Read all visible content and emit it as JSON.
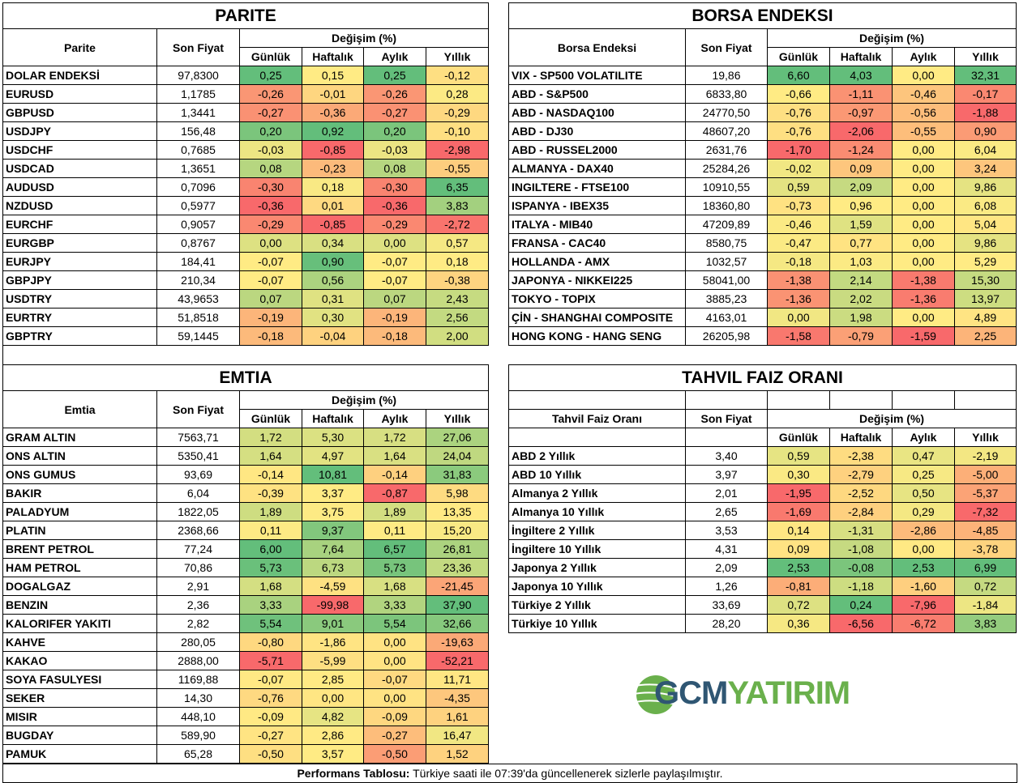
{
  "colors": {
    "low": "#F8696B",
    "mid": "#FFEB84",
    "high": "#63BE7B",
    "logo_blue": "#2F5673",
    "logo_green": "#6AB04C"
  },
  "change_header": "Değişim (%)",
  "periods": [
    "Günlük",
    "Haftalık",
    "Aylık",
    "Yıllık"
  ],
  "price_header": "Son Fiyat",
  "parite": {
    "title": "PARITE",
    "name_header": "Parite",
    "rows": [
      [
        "DOLAR ENDEKSİ",
        "97,8300",
        "0,25",
        "0,15",
        "0,25",
        "-0,12"
      ],
      [
        "EURUSD",
        "1,1785",
        "-0,26",
        "-0,01",
        "-0,26",
        "0,28"
      ],
      [
        "GBPUSD",
        "1,3441",
        "-0,27",
        "-0,36",
        "-0,27",
        "-0,29"
      ],
      [
        "USDJPY",
        "156,48",
        "0,20",
        "0,92",
        "0,20",
        "-0,10"
      ],
      [
        "USDCHF",
        "0,7685",
        "-0,03",
        "-0,85",
        "-0,03",
        "-2,98"
      ],
      [
        "USDCAD",
        "1,3651",
        "0,08",
        "-0,23",
        "0,08",
        "-0,55"
      ],
      [
        "AUDUSD",
        "0,7096",
        "-0,30",
        "0,18",
        "-0,30",
        "6,35"
      ],
      [
        "NZDUSD",
        "0,5977",
        "-0,36",
        "0,01",
        "-0,36",
        "3,83"
      ],
      [
        "EURCHF",
        "0,9057",
        "-0,29",
        "-0,85",
        "-0,29",
        "-2,72"
      ],
      [
        "EURGBP",
        "0,8767",
        "0,00",
        "0,34",
        "0,00",
        "0,57"
      ],
      [
        "EURJPY",
        "184,41",
        "-0,07",
        "0,90",
        "-0,07",
        "0,18"
      ],
      [
        "GBPJPY",
        "210,34",
        "-0,07",
        "0,56",
        "-0,07",
        "-0,38"
      ],
      [
        "USDTRY",
        "43,9653",
        "0,07",
        "0,31",
        "0,07",
        "2,43"
      ],
      [
        "EURTRY",
        "51,8518",
        "-0,19",
        "0,30",
        "-0,19",
        "2,56"
      ],
      [
        "GBPTRY",
        "59,1445",
        "-0,18",
        "-0,04",
        "-0,18",
        "2,00"
      ]
    ]
  },
  "borsa": {
    "title": "BORSA ENDEKSI",
    "name_header": "Borsa Endeksi",
    "rows": [
      [
        "VIX  - SP500 VOLATILITE",
        "19,86",
        "6,60",
        "4,03",
        "0,00",
        "32,31"
      ],
      [
        "ABD - S&P500",
        "6833,80",
        "-0,66",
        "-1,11",
        "-0,46",
        "-0,17"
      ],
      [
        "ABD - NASDAQ100",
        "24770,50",
        "-0,76",
        "-0,97",
        "-0,56",
        "-1,88"
      ],
      [
        "ABD - DJ30",
        "48607,20",
        "-0,76",
        "-2,06",
        "-0,55",
        "0,90"
      ],
      [
        "ABD - RUSSEL2000",
        "2631,76",
        "-1,70",
        "-1,24",
        "0,00",
        "6,04"
      ],
      [
        "ALMANYA - DAX40",
        "25284,26",
        "-0,02",
        "0,09",
        "0,00",
        "3,24"
      ],
      [
        "INGILTERE - FTSE100",
        "10910,55",
        "0,59",
        "2,09",
        "0,00",
        "9,86"
      ],
      [
        "ISPANYA - IBEX35",
        "18360,80",
        "-0,73",
        "0,96",
        "0,00",
        "6,08"
      ],
      [
        "ITALYA - MIB40",
        "47209,89",
        "-0,46",
        "1,59",
        "0,00",
        "5,04"
      ],
      [
        "FRANSA - CAC40",
        "8580,75",
        "-0,47",
        "0,77",
        "0,00",
        "9,86"
      ],
      [
        "HOLLANDA - AMX",
        "1032,57",
        "-0,18",
        "1,03",
        "0,00",
        "5,29"
      ],
      [
        "JAPONYA - NIKKEI225",
        "58041,00",
        "-1,38",
        "2,14",
        "-1,38",
        "15,30"
      ],
      [
        "TOKYO - TOPIX",
        "3885,23",
        "-1,36",
        "2,02",
        "-1,36",
        "13,97"
      ],
      [
        "ÇİN - SHANGHAI COMPOSITE",
        "4163,01",
        "0,00",
        "1,98",
        "0,00",
        "4,89"
      ],
      [
        "HONG KONG - HANG SENG",
        "26205,98",
        "-1,58",
        "-0,79",
        "-1,59",
        "2,25"
      ]
    ]
  },
  "emtia": {
    "title": "EMTIA",
    "name_header": "Emtia",
    "rows": [
      [
        "GRAM ALTIN",
        "7563,71",
        "1,72",
        "5,30",
        "1,72",
        "27,06"
      ],
      [
        "ONS ALTIN",
        "5350,41",
        "1,64",
        "4,97",
        "1,64",
        "24,04"
      ],
      [
        "ONS GUMUS",
        "93,69",
        "-0,14",
        "10,81",
        "-0,14",
        "31,83"
      ],
      [
        "BAKIR",
        "6,04",
        "-0,39",
        "3,37",
        "-0,87",
        "5,98"
      ],
      [
        "PALADYUM",
        "1822,05",
        "1,89",
        "3,75",
        "1,89",
        "13,35"
      ],
      [
        "PLATIN",
        "2368,66",
        "0,11",
        "9,37",
        "0,11",
        "15,20"
      ],
      [
        "BRENT PETROL",
        "77,24",
        "6,00",
        "7,64",
        "6,57",
        "26,81"
      ],
      [
        "HAM PETROL",
        "70,86",
        "5,73",
        "6,73",
        "5,73",
        "23,36"
      ],
      [
        "DOGALGAZ",
        "2,91",
        "1,68",
        "-4,59",
        "1,68",
        "-21,45"
      ],
      [
        "BENZIN",
        "2,36",
        "3,33",
        "-99,98",
        "3,33",
        "37,90"
      ],
      [
        "KALORIFER YAKITI",
        "2,82",
        "5,54",
        "9,01",
        "5,54",
        "32,66"
      ],
      [
        "KAHVE",
        "280,05",
        "-0,80",
        "-1,86",
        "0,00",
        "-19,63"
      ],
      [
        "KAKAO",
        "2888,00",
        "-5,71",
        "-5,99",
        "0,00",
        "-52,21"
      ],
      [
        "SOYA FASULYESI",
        "1169,88",
        "-0,07",
        "2,85",
        "-0,07",
        "11,71"
      ],
      [
        "SEKER",
        "14,30",
        "-0,76",
        "0,00",
        "0,00",
        "-4,35"
      ],
      [
        "MISIR",
        "448,10",
        "-0,09",
        "4,82",
        "-0,09",
        "1,61"
      ],
      [
        "BUGDAY",
        "589,90",
        "-0,27",
        "2,86",
        "-0,27",
        "16,47"
      ],
      [
        "PAMUK",
        "65,28",
        "-0,50",
        "3,57",
        "-0,50",
        "1,52"
      ]
    ]
  },
  "tahvil": {
    "title": "TAHVIL FAIZ ORANI",
    "name_header": "Tahvil Faiz Oranı",
    "rows": [
      [
        "ABD 2 Yıllık",
        "3,40",
        "0,59",
        "-2,38",
        "0,47",
        "-2,19"
      ],
      [
        "ABD 10 Yıllık",
        "3,97",
        "0,30",
        "-2,79",
        "0,25",
        "-5,00"
      ],
      [
        "Almanya 2 Yıllık",
        "2,01",
        "-1,95",
        "-2,52",
        "0,50",
        "-5,37"
      ],
      [
        "Almanya 10 Yıllık",
        "2,65",
        "-1,69",
        "-2,84",
        "0,29",
        "-7,32"
      ],
      [
        "İngiltere 2 Yıllık",
        "3,53",
        "0,14",
        "-1,31",
        "-2,86",
        "-4,85"
      ],
      [
        "İngiltere 10 Yıllık",
        "4,31",
        "0,09",
        "-1,08",
        "0,00",
        "-3,78"
      ],
      [
        "Japonya 2 Yıllık",
        "2,09",
        "2,53",
        "-0,08",
        "2,53",
        "6,99"
      ],
      [
        "Japonya 10 Yıllık",
        "1,26",
        "-0,81",
        "-1,18",
        "-1,60",
        "0,72"
      ],
      [
        "Türkiye 2 Yıllık",
        "33,69",
        "0,72",
        "0,24",
        "-7,96",
        "-1,84"
      ],
      [
        "Türkiye 10 Yıllık",
        "28,20",
        "0,36",
        "-6,56",
        "-6,72",
        "3,83"
      ]
    ]
  },
  "logo": {
    "text_dark": "GCM",
    "text_green": "YATIRIM"
  },
  "footer": {
    "label": "Performans Tablosu:",
    "text": " Türkiye saati ile 07:39'da güncellenerek sizlerle paylaşılmıştır."
  }
}
